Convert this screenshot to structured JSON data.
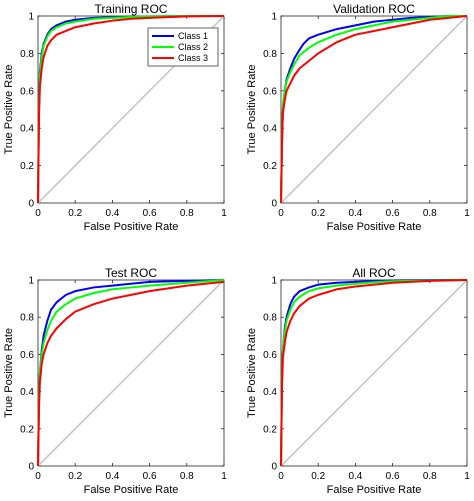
{
  "chart_data": [
    {
      "type": "line",
      "title": "Training ROC",
      "xlabel": "False Positive Rate",
      "ylabel": "True Positive Rate",
      "xlim": [
        0,
        1
      ],
      "ylim": [
        0,
        1
      ],
      "xticks": [
        "0",
        "0.2",
        "0.4",
        "0.6",
        "0.8",
        "1"
      ],
      "yticks": [
        "0",
        "0.2",
        "0.4",
        "0.6",
        "0.8",
        "1"
      ],
      "grid": false,
      "legend": "top-right",
      "series": [
        {
          "name": "Class 1",
          "color": "#0000ff",
          "x": [
            0,
            0.005,
            0.01,
            0.02,
            0.03,
            0.05,
            0.07,
            0.1,
            0.15,
            0.2,
            0.3,
            0.4,
            0.5,
            0.6,
            0.8,
            1
          ],
          "y": [
            0,
            0.5,
            0.7,
            0.8,
            0.85,
            0.9,
            0.93,
            0.95,
            0.97,
            0.98,
            0.99,
            0.993,
            0.996,
            0.998,
            1,
            1
          ]
        },
        {
          "name": "Class 2",
          "color": "#00ff00",
          "x": [
            0,
            0.005,
            0.01,
            0.02,
            0.03,
            0.05,
            0.07,
            0.1,
            0.15,
            0.2,
            0.3,
            0.4,
            0.5,
            0.6,
            0.8,
            1
          ],
          "y": [
            0,
            0.5,
            0.68,
            0.78,
            0.84,
            0.89,
            0.92,
            0.94,
            0.96,
            0.97,
            0.985,
            0.99,
            0.995,
            0.997,
            1,
            1
          ]
        },
        {
          "name": "Class 3",
          "color": "#ff0000",
          "x": [
            0,
            0.005,
            0.01,
            0.02,
            0.03,
            0.05,
            0.07,
            0.1,
            0.15,
            0.2,
            0.3,
            0.4,
            0.5,
            0.6,
            0.8,
            1
          ],
          "y": [
            0,
            0.45,
            0.62,
            0.72,
            0.78,
            0.84,
            0.87,
            0.9,
            0.92,
            0.94,
            0.96,
            0.975,
            0.985,
            0.99,
            0.998,
            1
          ]
        }
      ],
      "reference_line": {
        "x": [
          0,
          1
        ],
        "y": [
          0,
          1
        ],
        "color": "#c8c8c8"
      }
    },
    {
      "type": "line",
      "title": "Validation ROC",
      "xlabel": "False Positive Rate",
      "ylabel": "True Positive Rate",
      "xlim": [
        0,
        1
      ],
      "ylim": [
        0,
        1
      ],
      "xticks": [
        "0",
        "0.2",
        "0.4",
        "0.6",
        "0.8",
        "1"
      ],
      "yticks": [
        "0",
        "0.2",
        "0.4",
        "0.6",
        "0.8",
        "1"
      ],
      "grid": false,
      "series": [
        {
          "name": "Class 1",
          "color": "#0000ff",
          "x": [
            0,
            0.005,
            0.01,
            0.02,
            0.03,
            0.05,
            0.07,
            0.1,
            0.12,
            0.15,
            0.2,
            0.3,
            0.4,
            0.5,
            0.6,
            0.7,
            0.8,
            0.9,
            1
          ],
          "y": [
            0,
            0.3,
            0.5,
            0.6,
            0.66,
            0.72,
            0.77,
            0.82,
            0.85,
            0.88,
            0.9,
            0.93,
            0.95,
            0.97,
            0.98,
            0.99,
            0.995,
            1,
            1
          ]
        },
        {
          "name": "Class 2",
          "color": "#00ff00",
          "x": [
            0,
            0.005,
            0.01,
            0.02,
            0.03,
            0.05,
            0.07,
            0.1,
            0.15,
            0.2,
            0.3,
            0.4,
            0.5,
            0.6,
            0.7,
            0.8,
            0.9,
            1
          ],
          "y": [
            0,
            0.35,
            0.52,
            0.6,
            0.65,
            0.7,
            0.74,
            0.79,
            0.83,
            0.86,
            0.9,
            0.93,
            0.95,
            0.97,
            0.98,
            0.99,
            1,
            1
          ]
        },
        {
          "name": "Class 3",
          "color": "#ff0000",
          "x": [
            0,
            0.005,
            0.01,
            0.02,
            0.03,
            0.05,
            0.07,
            0.1,
            0.15,
            0.2,
            0.3,
            0.4,
            0.5,
            0.6,
            0.7,
            0.8,
            0.9,
            1
          ],
          "y": [
            0,
            0.32,
            0.48,
            0.55,
            0.6,
            0.64,
            0.68,
            0.72,
            0.76,
            0.8,
            0.86,
            0.9,
            0.92,
            0.94,
            0.96,
            0.98,
            0.99,
            1
          ]
        }
      ],
      "reference_line": {
        "x": [
          0,
          1
        ],
        "y": [
          0,
          1
        ],
        "color": "#c8c8c8"
      }
    },
    {
      "type": "line",
      "title": "Test ROC",
      "xlabel": "False Positive Rate",
      "ylabel": "True Positive Rate",
      "xlim": [
        0,
        1
      ],
      "ylim": [
        0,
        1
      ],
      "xticks": [
        "0",
        "0.2",
        "0.4",
        "0.6",
        "0.8",
        "1"
      ],
      "yticks": [
        "0",
        "0.2",
        "0.4",
        "0.6",
        "0.8",
        "1"
      ],
      "grid": false,
      "series": [
        {
          "name": "Class 1",
          "color": "#0000ff",
          "x": [
            0,
            0.005,
            0.01,
            0.02,
            0.03,
            0.05,
            0.07,
            0.1,
            0.15,
            0.2,
            0.3,
            0.4,
            0.5,
            0.6,
            0.8,
            1
          ],
          "y": [
            0,
            0.35,
            0.5,
            0.62,
            0.7,
            0.78,
            0.84,
            0.88,
            0.92,
            0.94,
            0.96,
            0.97,
            0.98,
            0.99,
            0.995,
            1
          ]
        },
        {
          "name": "Class 2",
          "color": "#00ff00",
          "x": [
            0,
            0.005,
            0.01,
            0.02,
            0.03,
            0.05,
            0.07,
            0.1,
            0.15,
            0.2,
            0.3,
            0.4,
            0.5,
            0.6,
            0.8,
            1
          ],
          "y": [
            0,
            0.35,
            0.5,
            0.6,
            0.66,
            0.73,
            0.78,
            0.83,
            0.87,
            0.9,
            0.93,
            0.95,
            0.96,
            0.97,
            0.985,
            1
          ]
        },
        {
          "name": "Class 3",
          "color": "#ff0000",
          "x": [
            0,
            0.005,
            0.01,
            0.02,
            0.03,
            0.05,
            0.07,
            0.1,
            0.15,
            0.2,
            0.3,
            0.4,
            0.5,
            0.6,
            0.8,
            0.9,
            1
          ],
          "y": [
            0,
            0.3,
            0.45,
            0.55,
            0.6,
            0.66,
            0.7,
            0.74,
            0.79,
            0.83,
            0.87,
            0.9,
            0.92,
            0.94,
            0.97,
            0.98,
            0.99
          ]
        }
      ],
      "reference_line": {
        "x": [
          0,
          1
        ],
        "y": [
          0,
          1
        ],
        "color": "#c8c8c8"
      }
    },
    {
      "type": "line",
      "title": "All ROC",
      "xlabel": "False Positive Rate",
      "ylabel": "True Positive Rate",
      "xlim": [
        0,
        1
      ],
      "ylim": [
        0,
        1
      ],
      "xticks": [
        "0",
        "0.2",
        "0.4",
        "0.6",
        "0.8",
        "1"
      ],
      "yticks": [
        "0",
        "0.2",
        "0.4",
        "0.6",
        "0.8",
        "1"
      ],
      "grid": false,
      "series": [
        {
          "name": "Class 1",
          "color": "#0000ff",
          "x": [
            0,
            0.005,
            0.01,
            0.02,
            0.03,
            0.05,
            0.07,
            0.1,
            0.15,
            0.2,
            0.3,
            0.4,
            0.5,
            0.6,
            0.8,
            1
          ],
          "y": [
            0,
            0.45,
            0.62,
            0.74,
            0.8,
            0.87,
            0.91,
            0.94,
            0.96,
            0.975,
            0.985,
            0.99,
            0.995,
            0.997,
            1,
            1
          ]
        },
        {
          "name": "Class 2",
          "color": "#00ff00",
          "x": [
            0,
            0.005,
            0.01,
            0.02,
            0.03,
            0.05,
            0.07,
            0.1,
            0.15,
            0.2,
            0.3,
            0.4,
            0.5,
            0.6,
            0.8,
            1
          ],
          "y": [
            0,
            0.45,
            0.62,
            0.72,
            0.78,
            0.84,
            0.88,
            0.91,
            0.94,
            0.955,
            0.97,
            0.98,
            0.988,
            0.993,
            0.998,
            1
          ]
        },
        {
          "name": "Class 3",
          "color": "#ff0000",
          "x": [
            0,
            0.005,
            0.01,
            0.02,
            0.03,
            0.05,
            0.07,
            0.1,
            0.15,
            0.2,
            0.3,
            0.4,
            0.5,
            0.6,
            0.8,
            1
          ],
          "y": [
            0,
            0.42,
            0.58,
            0.66,
            0.72,
            0.78,
            0.82,
            0.86,
            0.9,
            0.92,
            0.95,
            0.965,
            0.975,
            0.985,
            0.995,
            1
          ]
        }
      ],
      "reference_line": {
        "x": [
          0,
          1
        ],
        "y": [
          0,
          1
        ],
        "color": "#c8c8c8"
      }
    }
  ]
}
